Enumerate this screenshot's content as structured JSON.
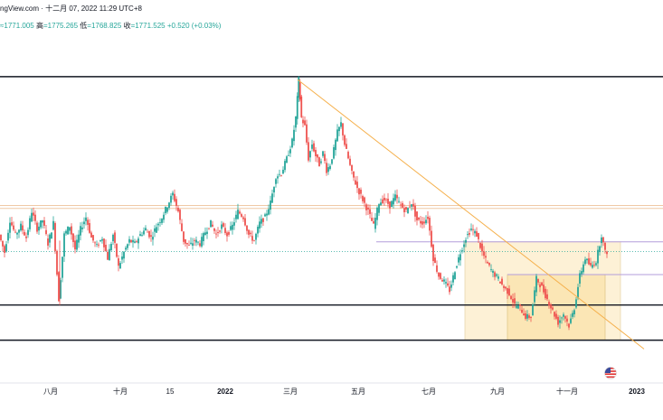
{
  "header": {
    "source": "ngView.com",
    "date": "十二月 07, 2022 11:29 UTC+8",
    "separator": "·"
  },
  "ohlc": {
    "open_value": "≈1771.005",
    "high_label": "高",
    "high_value": "=1775.265",
    "low_label": "低",
    "low_value": "=1768.825",
    "close_label": "收",
    "close_value": "=1771.525",
    "change": "+0.520 (+0.03%)"
  },
  "colors": {
    "up": "#26a69a",
    "down": "#ef5350",
    "trendline": "#f5b04c",
    "box_fill": "#fdf1d6",
    "box_fill_inner": "#fbe6b5",
    "range_line": "#b39ddb",
    "level_line": "#131722",
    "dotted_price": "#26a69a"
  },
  "icons": {
    "flag": "us-flag-icon"
  },
  "chart_data": {
    "type": "candlestick",
    "title": "",
    "xlabel": "",
    "ylabel": "",
    "x_tick_labels": [
      "八月",
      "十月",
      "15",
      "2022",
      "三月",
      "五月",
      "七月",
      "九月",
      "十一月",
      "2023"
    ],
    "y_range": [
      1550,
      2150
    ],
    "horizontal_levels": [
      2070,
      1850,
      1845,
      1680,
      1620
    ],
    "range_levels": [
      1788,
      1732
    ],
    "last_price": 1771.5,
    "price_path": [
      [
        0,
        1800
      ],
      [
        6,
        1770
      ],
      [
        12,
        1825
      ],
      [
        18,
        1800
      ],
      [
        24,
        1815
      ],
      [
        30,
        1795
      ],
      [
        36,
        1840
      ],
      [
        42,
        1810
      ],
      [
        48,
        1825
      ],
      [
        54,
        1785
      ],
      [
        60,
        1820
      ],
      [
        66,
        1690
      ],
      [
        72,
        1800
      ],
      [
        78,
        1815
      ],
      [
        84,
        1775
      ],
      [
        90,
        1810
      ],
      [
        96,
        1830
      ],
      [
        102,
        1795
      ],
      [
        108,
        1780
      ],
      [
        114,
        1795
      ],
      [
        120,
        1760
      ],
      [
        126,
        1800
      ],
      [
        132,
        1745
      ],
      [
        138,
        1770
      ],
      [
        144,
        1790
      ],
      [
        150,
        1785
      ],
      [
        156,
        1800
      ],
      [
        162,
        1810
      ],
      [
        168,
        1795
      ],
      [
        174,
        1815
      ],
      [
        180,
        1830
      ],
      [
        186,
        1850
      ],
      [
        192,
        1870
      ],
      [
        198,
        1840
      ],
      [
        204,
        1790
      ],
      [
        210,
        1780
      ],
      [
        216,
        1790
      ],
      [
        222,
        1785
      ],
      [
        228,
        1805
      ],
      [
        234,
        1820
      ],
      [
        240,
        1800
      ],
      [
        246,
        1815
      ],
      [
        252,
        1800
      ],
      [
        258,
        1815
      ],
      [
        264,
        1840
      ],
      [
        270,
        1830
      ],
      [
        276,
        1800
      ],
      [
        282,
        1790
      ],
      [
        288,
        1820
      ],
      [
        294,
        1830
      ],
      [
        300,
        1855
      ],
      [
        306,
        1900
      ],
      [
        312,
        1905
      ],
      [
        318,
        1930
      ],
      [
        324,
        1960
      ],
      [
        328,
        2000
      ],
      [
        331,
        2065
      ],
      [
        334,
        2000
      ],
      [
        338,
        1985
      ],
      [
        342,
        1930
      ],
      [
        346,
        1955
      ],
      [
        350,
        1935
      ],
      [
        354,
        1920
      ],
      [
        358,
        1940
      ],
      [
        362,
        1910
      ],
      [
        366,
        1920
      ],
      [
        370,
        1945
      ],
      [
        374,
        1975
      ],
      [
        378,
        1990
      ],
      [
        382,
        1955
      ],
      [
        386,
        1930
      ],
      [
        390,
        1905
      ],
      [
        396,
        1880
      ],
      [
        402,
        1860
      ],
      [
        408,
        1840
      ],
      [
        414,
        1815
      ],
      [
        420,
        1855
      ],
      [
        426,
        1860
      ],
      [
        432,
        1850
      ],
      [
        438,
        1865
      ],
      [
        444,
        1850
      ],
      [
        450,
        1840
      ],
      [
        456,
        1855
      ],
      [
        462,
        1825
      ],
      [
        468,
        1820
      ],
      [
        474,
        1830
      ],
      [
        480,
        1760
      ],
      [
        486,
        1730
      ],
      [
        492,
        1720
      ],
      [
        498,
        1705
      ],
      [
        504,
        1740
      ],
      [
        510,
        1770
      ],
      [
        516,
        1795
      ],
      [
        522,
        1810
      ],
      [
        528,
        1800
      ],
      [
        534,
        1770
      ],
      [
        540,
        1750
      ],
      [
        546,
        1735
      ],
      [
        552,
        1725
      ],
      [
        558,
        1710
      ],
      [
        564,
        1700
      ],
      [
        570,
        1680
      ],
      [
        576,
        1675
      ],
      [
        582,
        1660
      ],
      [
        588,
        1660
      ],
      [
        594,
        1725
      ],
      [
        600,
        1710
      ],
      [
        606,
        1690
      ],
      [
        612,
        1670
      ],
      [
        618,
        1650
      ],
      [
        624,
        1665
      ],
      [
        630,
        1645
      ],
      [
        636,
        1675
      ],
      [
        642,
        1730
      ],
      [
        648,
        1760
      ],
      [
        654,
        1745
      ],
      [
        660,
        1755
      ],
      [
        666,
        1800
      ],
      [
        670,
        1770
      ],
      [
        672,
        1771
      ]
    ]
  }
}
